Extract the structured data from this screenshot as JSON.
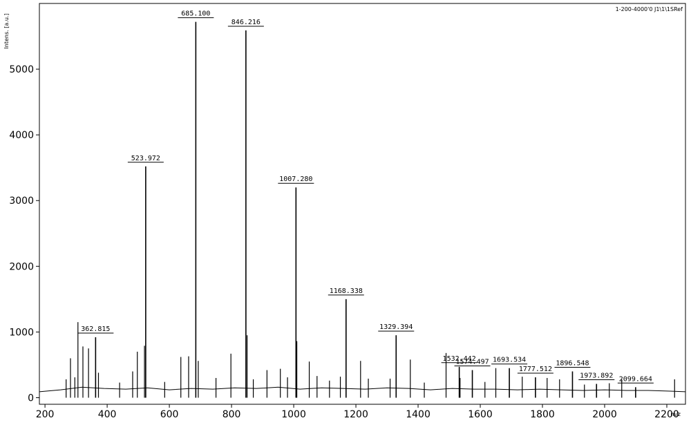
{
  "chart_data": {
    "type": "spectrum",
    "y_label": "Intens. [a.u.]",
    "x_label": "m/z",
    "note": "1-200-4000'0 J1\\1\\1SRef",
    "xlim": [
      182,
      2260
    ],
    "ylim": [
      -100,
      6000
    ],
    "xticks": [
      200,
      400,
      600,
      800,
      1000,
      1200,
      1400,
      1600,
      1800,
      2000,
      2200
    ],
    "yticks": [
      0,
      1000,
      2000,
      3000,
      4000,
      5000
    ],
    "color": "#000000",
    "series": [
      {
        "name": "labeled-peaks",
        "x": [
          362.815,
          523.972,
          685.1,
          846.216,
          1007.28,
          1168.338,
          1329.394,
          1532.442,
          1574.497,
          1693.534,
          1777.512,
          1896.548,
          1973.892,
          2099.664
        ],
        "x_labels": [
          "362.815",
          "523.972",
          "685.100",
          "846.216",
          "1007.280",
          "1168.338",
          "1329.394",
          "1532.442",
          "1574.497",
          "1693.534",
          "1777.512",
          "1896.548",
          "1973.892",
          "2099.664"
        ],
        "values": [
          920,
          3520,
          5720,
          5590,
          3200,
          1500,
          950,
          470,
          420,
          450,
          310,
          400,
          210,
          160
        ]
      },
      {
        "name": "other-peaks",
        "x": [
          268,
          282,
          296,
          306,
          322,
          340,
          372,
          440,
          482,
          497,
          520,
          585,
          637,
          662,
          693,
          750,
          798,
          850,
          870,
          914,
          957,
          980,
          1010,
          1050,
          1075,
          1115,
          1150,
          1215,
          1240,
          1310,
          1375,
          1420,
          1490,
          1535,
          1615,
          1650,
          1735,
          1815,
          1855,
          1935,
          2015,
          2055,
          2225
        ],
        "values": [
          280,
          600,
          310,
          1150,
          780,
          750,
          380,
          230,
          400,
          700,
          790,
          240,
          620,
          630,
          560,
          300,
          670,
          950,
          280,
          420,
          440,
          310,
          860,
          550,
          330,
          260,
          320,
          560,
          290,
          290,
          580,
          230,
          680,
          300,
          240,
          450,
          320,
          300,
          280,
          200,
          220,
          280,
          280
        ]
      },
      {
        "name": "baseline",
        "x": [
          182,
          250,
          320,
          390,
          460,
          530,
          600,
          670,
          740,
          810,
          880,
          950,
          1020,
          1090,
          1160,
          1230,
          1300,
          1370,
          1440,
          1510,
          1580,
          1650,
          1720,
          1790,
          1860,
          1930,
          2000,
          2070,
          2140,
          2210,
          2260
        ],
        "values": [
          90,
          120,
          160,
          140,
          130,
          150,
          120,
          140,
          130,
          150,
          140,
          160,
          130,
          150,
          140,
          130,
          150,
          140,
          120,
          140,
          130,
          130,
          120,
          130,
          120,
          110,
          120,
          110,
          110,
          100,
          90
        ]
      }
    ]
  }
}
